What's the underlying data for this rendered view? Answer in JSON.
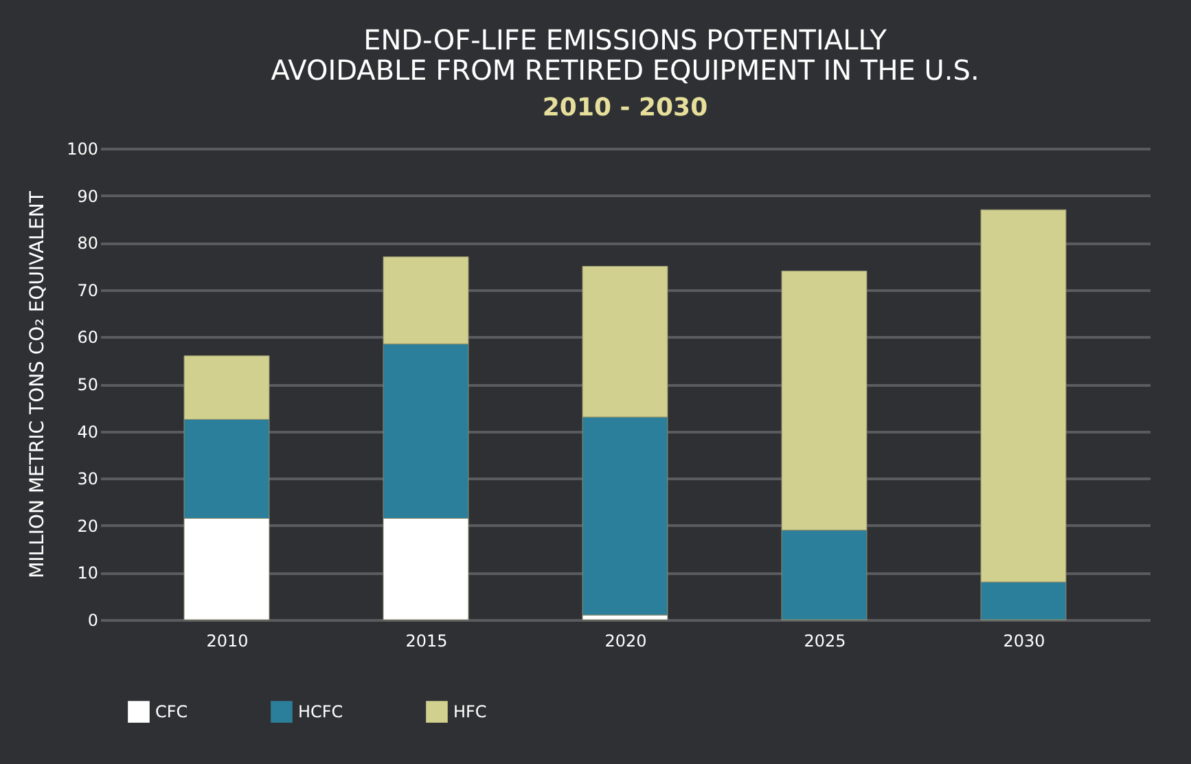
{
  "chart_data": {
    "type": "bar",
    "title": "END-OF-LIFE EMISSIONS POTENTIALLY\nAVOIDABLE FROM RETIRED EQUIPMENT IN THE U.S.",
    "subtitle": "2010 - 2030",
    "ylabel": "MILLION METRIC TONS CO₂ EQUIVALENT",
    "categories": [
      "2010",
      "2015",
      "2020",
      "2025",
      "2030"
    ],
    "stacked": true,
    "series": [
      {
        "name": "CFC",
        "color": "#ffffff",
        "values": [
          21.5,
          21.5,
          1,
          0,
          0
        ]
      },
      {
        "name": "HCFC",
        "color": "#2c7f9a",
        "values": [
          21,
          37,
          42,
          19,
          8
        ]
      },
      {
        "name": "HFC",
        "color": "#d1d08e",
        "values": [
          13.5,
          18.5,
          32,
          55,
          79
        ]
      }
    ],
    "ylim": [
      0,
      100
    ],
    "yticks": [
      0,
      10,
      20,
      30,
      40,
      50,
      60,
      70,
      80,
      90,
      100
    ],
    "grid": "y",
    "legend": "bottom"
  }
}
